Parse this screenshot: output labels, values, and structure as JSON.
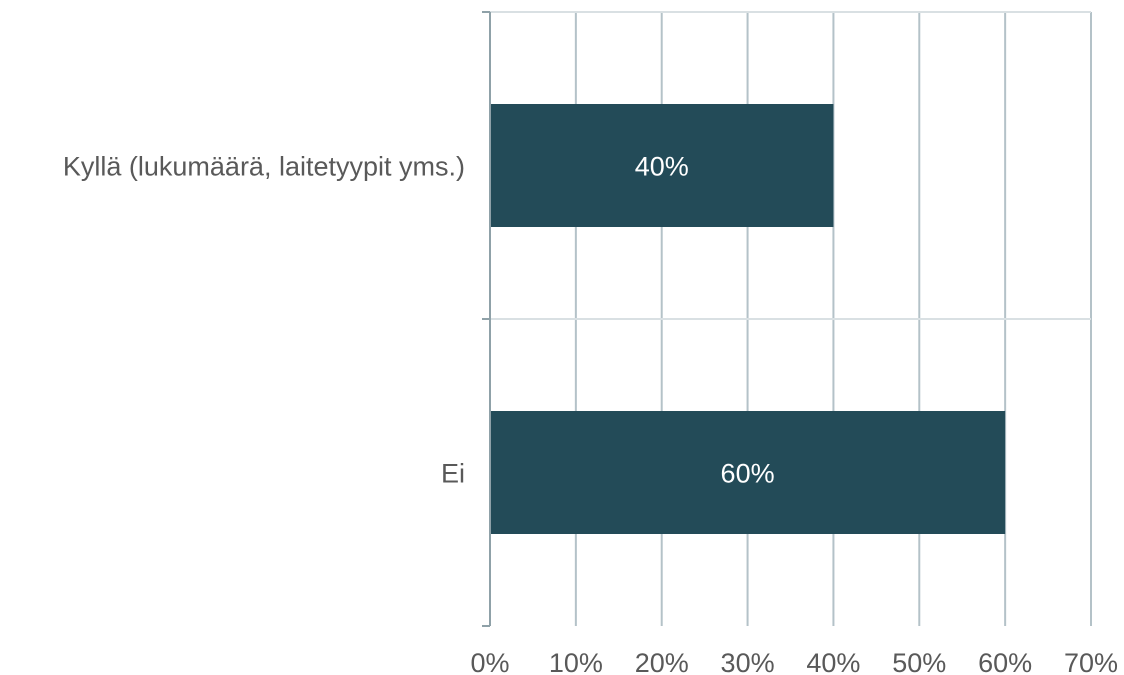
{
  "chart_data": {
    "type": "bar",
    "orientation": "horizontal",
    "categories": [
      "Kyllä (lukumäärä, laitetyypit yms.)",
      "Ei"
    ],
    "values": [
      40,
      60
    ],
    "value_labels": [
      "40%",
      "60%"
    ],
    "xlim": [
      0,
      70
    ],
    "x_ticks": [
      0,
      10,
      20,
      30,
      40,
      50,
      60,
      70
    ],
    "x_tick_labels": [
      "0%",
      "10%",
      "20%",
      "30%",
      "40%",
      "50%",
      "60%",
      "70%"
    ],
    "title": "",
    "xlabel": "",
    "ylabel": "",
    "grid": true,
    "legend": "none",
    "colors": {
      "bar": "#234B58",
      "grid": "#B4C2C8",
      "axis": "#8FA1A8",
      "text": "#595959",
      "data_label": "#FFFFFF"
    }
  }
}
